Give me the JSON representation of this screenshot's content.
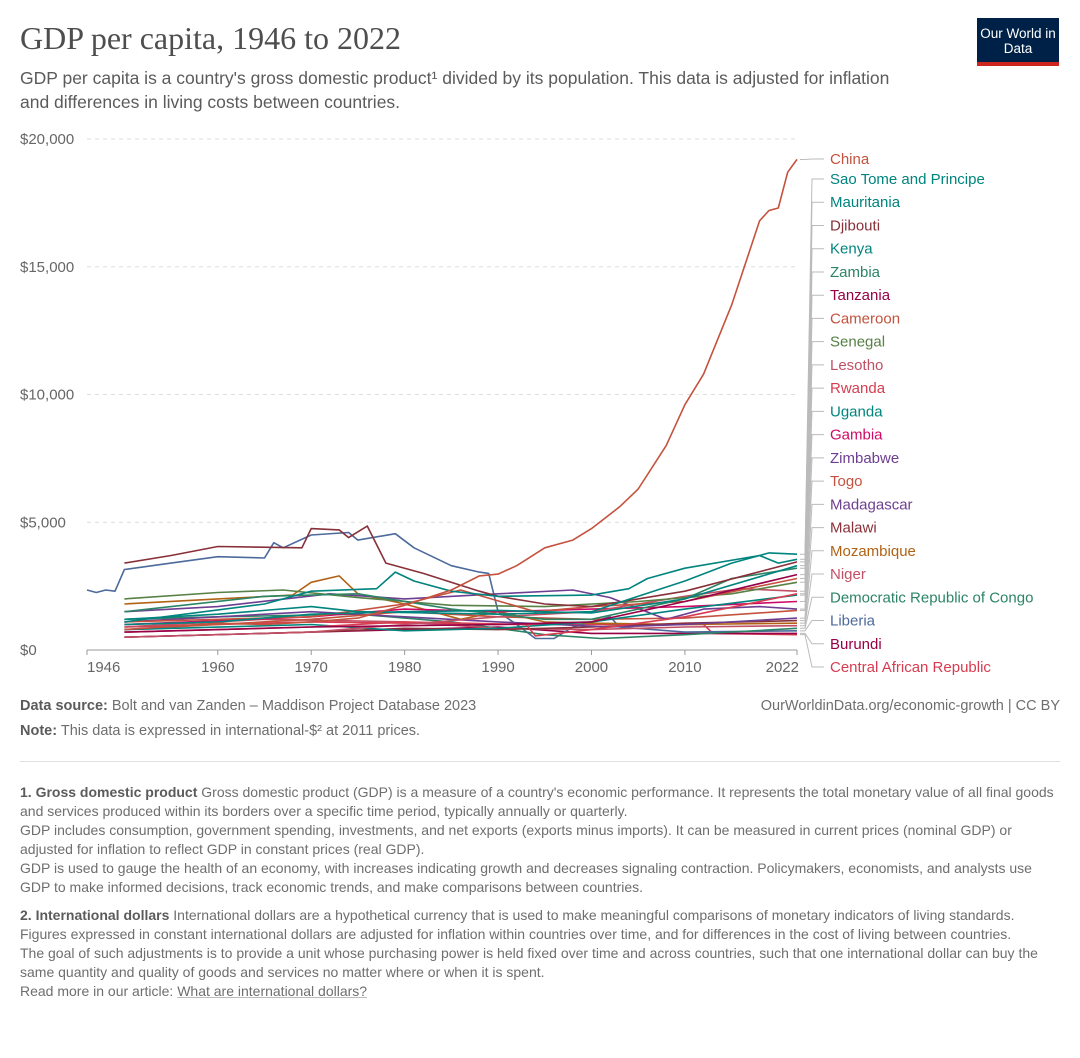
{
  "header": {
    "title": "GDP per capita, 1946 to 2022",
    "subtitle": "GDP per capita is a country's gross domestic product¹ divided by its population. This data is adjusted for inflation and differences in living costs between countries.",
    "logo": "Our World in Data"
  },
  "footer": {
    "source_label": "Data source:",
    "source": "Bolt and van Zanden – Maddison Project Database 2023",
    "url": "OurWorldinData.org/economic-growth | CC BY",
    "note_label": "Note:",
    "note": "This data is expressed in international-$² at 2011 prices."
  },
  "footnotes": {
    "f1_title": "1. Gross domestic product",
    "f1_p1": "Gross domestic product (GDP) is a measure of a country's economic performance. It represents the total monetary value of all final goods and services produced within its borders over a specific time period, typically annually or quarterly.",
    "f1_p2": "GDP includes consumption, government spending, investments, and net exports (exports minus imports). It can be measured in current prices (nominal GDP) or adjusted for inflation to reflect GDP in constant prices (real GDP).",
    "f1_p3": "GDP is used to gauge the health of an economy, with increases indicating growth and decreases signaling contraction. Policymakers, economists, and analysts use GDP to make informed decisions, track economic trends, and make comparisons between countries.",
    "f2_title": "2. International dollars",
    "f2_p1": "International dollars are a hypothetical currency that is used to make meaningful comparisons of monetary indicators of living standards.",
    "f2_p2": "Figures expressed in constant international dollars are adjusted for inflation within countries over time, and for differences in the cost of living between countries.",
    "f2_p3": "The goal of such adjustments is to provide a unit whose purchasing power is held fixed over time and across countries, such that one international dollar can buy the same quantity and quality of goods and services no matter where or when it is spent.",
    "f2_read": "Read more in our article:",
    "f2_link": "What are international dollars?"
  },
  "chart_data": {
    "type": "line",
    "xlim": [
      1946,
      2022
    ],
    "ylim": [
      0,
      20000
    ],
    "x_ticks": [
      1946,
      1960,
      1970,
      1980,
      1990,
      2000,
      2010,
      2022
    ],
    "y_ticks": [
      0,
      5000,
      10000,
      15000,
      20000
    ],
    "y_tick_labels": [
      "$0",
      "$5,000",
      "$10,000",
      "$15,000",
      "$20,000"
    ],
    "grid": "horizontal dashed",
    "legend": "right, line-end labels",
    "series": [
      {
        "name": "China",
        "color": "#c4523e",
        "points": [
          [
            1950,
            800
          ],
          [
            1960,
            1050
          ],
          [
            1965,
            1000
          ],
          [
            1970,
            1100
          ],
          [
            1975,
            1250
          ],
          [
            1978,
            1550
          ],
          [
            1980,
            1750
          ],
          [
            1985,
            2350
          ],
          [
            1988,
            2900
          ],
          [
            1990,
            2970
          ],
          [
            1992,
            3300
          ],
          [
            1995,
            4000
          ],
          [
            1998,
            4300
          ],
          [
            2000,
            4750
          ],
          [
            2003,
            5600
          ],
          [
            2005,
            6300
          ],
          [
            2008,
            8000
          ],
          [
            2010,
            9600
          ],
          [
            2012,
            10800
          ],
          [
            2015,
            13500
          ],
          [
            2018,
            16800
          ],
          [
            2019,
            17200
          ],
          [
            2020,
            17300
          ],
          [
            2021,
            18700
          ],
          [
            2022,
            19200
          ]
        ]
      },
      {
        "name": "Sao Tome and Principe",
        "color": "#00847e",
        "points": [
          [
            1950,
            1200
          ],
          [
            1960,
            1400
          ],
          [
            1970,
            1700
          ],
          [
            1975,
            1500
          ],
          [
            1990,
            1400
          ],
          [
            2000,
            1500
          ],
          [
            2005,
            2100
          ],
          [
            2010,
            2700
          ],
          [
            2015,
            3400
          ],
          [
            2019,
            3800
          ],
          [
            2022,
            3750
          ]
        ]
      },
      {
        "name": "Mauritania",
        "color": "#00847e",
        "points": [
          [
            1950,
            1100
          ],
          [
            1965,
            1800
          ],
          [
            1970,
            2300
          ],
          [
            1977,
            2400
          ],
          [
            1979,
            3050
          ],
          [
            1981,
            2700
          ],
          [
            1985,
            2300
          ],
          [
            1990,
            2100
          ],
          [
            2000,
            2150
          ],
          [
            2004,
            2400
          ],
          [
            2006,
            2800
          ],
          [
            2010,
            3200
          ],
          [
            2018,
            3700
          ],
          [
            2020,
            3400
          ],
          [
            2022,
            3550
          ]
        ]
      },
      {
        "name": "Djibouti",
        "color": "#883039",
        "points": [
          [
            1950,
            3400
          ],
          [
            1955,
            3700
          ],
          [
            1960,
            4050
          ],
          [
            1969,
            4000
          ],
          [
            1970,
            4750
          ],
          [
            1973,
            4700
          ],
          [
            1974,
            4400
          ],
          [
            1976,
            4850
          ],
          [
            1978,
            3400
          ],
          [
            1982,
            3000
          ],
          [
            1988,
            2300
          ],
          [
            1990,
            2100
          ],
          [
            1995,
            1800
          ],
          [
            2000,
            1700
          ],
          [
            2010,
            2300
          ],
          [
            2022,
            3450
          ]
        ]
      },
      {
        "name": "Kenya",
        "color": "#00847e",
        "points": [
          [
            1950,
            1000
          ],
          [
            1960,
            1100
          ],
          [
            1970,
            1400
          ],
          [
            1980,
            1500
          ],
          [
            1990,
            1550
          ],
          [
            2000,
            1450
          ],
          [
            2010,
            2000
          ],
          [
            2022,
            3300
          ]
        ]
      },
      {
        "name": "Zambia",
        "color": "#2c8465",
        "points": [
          [
            1950,
            1500
          ],
          [
            1965,
            2100
          ],
          [
            1975,
            2200
          ],
          [
            1985,
            1600
          ],
          [
            1995,
            1200
          ],
          [
            2000,
            1200
          ],
          [
            2010,
            2000
          ],
          [
            2015,
            2800
          ],
          [
            2022,
            3200
          ]
        ]
      },
      {
        "name": "Tanzania",
        "color": "#970046",
        "points": [
          [
            1950,
            700
          ],
          [
            1970,
            900
          ],
          [
            1990,
            1000
          ],
          [
            2000,
            1100
          ],
          [
            2010,
            1900
          ],
          [
            2022,
            2950
          ]
        ]
      },
      {
        "name": "Cameroon",
        "color": "#c4523e",
        "points": [
          [
            1950,
            1100
          ],
          [
            1970,
            1300
          ],
          [
            1980,
            1800
          ],
          [
            1986,
            2350
          ],
          [
            1994,
            1500
          ],
          [
            2000,
            1700
          ],
          [
            2010,
            1900
          ],
          [
            2022,
            2800
          ]
        ]
      },
      {
        "name": "Senegal",
        "color": "#578145",
        "points": [
          [
            1950,
            2000
          ],
          [
            1960,
            2250
          ],
          [
            1967,
            2350
          ],
          [
            1975,
            2050
          ],
          [
            1985,
            1750
          ],
          [
            1995,
            1700
          ],
          [
            2005,
            1900
          ],
          [
            2015,
            2200
          ],
          [
            2022,
            2650
          ]
        ]
      },
      {
        "name": "Lesotho",
        "color": "#c15065",
        "points": [
          [
            1950,
            500
          ],
          [
            1970,
            700
          ],
          [
            1980,
            1000
          ],
          [
            1990,
            1300
          ],
          [
            2000,
            1500
          ],
          [
            2010,
            2100
          ],
          [
            2016,
            2400
          ],
          [
            2022,
            2300
          ]
        ]
      },
      {
        "name": "Rwanda",
        "color": "#d73c50",
        "points": [
          [
            1950,
            700
          ],
          [
            1970,
            900
          ],
          [
            1980,
            1100
          ],
          [
            1993,
            1000
          ],
          [
            1994,
            550
          ],
          [
            2000,
            800
          ],
          [
            2010,
            1300
          ],
          [
            2022,
            2200
          ]
        ]
      },
      {
        "name": "Uganda",
        "color": "#00847e",
        "points": [
          [
            1950,
            800
          ],
          [
            1970,
            1000
          ],
          [
            1980,
            750
          ],
          [
            1990,
            850
          ],
          [
            2000,
            1100
          ],
          [
            2010,
            1600
          ],
          [
            2022,
            2150
          ]
        ]
      },
      {
        "name": "Gambia",
        "color": "#cf0a66",
        "points": [
          [
            1950,
            1000
          ],
          [
            1970,
            1300
          ],
          [
            1980,
            1600
          ],
          [
            1990,
            1500
          ],
          [
            2000,
            1600
          ],
          [
            2010,
            1700
          ],
          [
            2022,
            1900
          ]
        ]
      },
      {
        "name": "Zimbabwe",
        "color": "#6d3e91",
        "points": [
          [
            1950,
            1500
          ],
          [
            1960,
            1700
          ],
          [
            1972,
            2200
          ],
          [
            1980,
            2000
          ],
          [
            1990,
            2200
          ],
          [
            1998,
            2350
          ],
          [
            2002,
            2050
          ],
          [
            2008,
            1200
          ],
          [
            2012,
            1600
          ],
          [
            2018,
            1700
          ],
          [
            2022,
            1600
          ]
        ]
      },
      {
        "name": "Togo",
        "color": "#c4523e",
        "points": [
          [
            1950,
            800
          ],
          [
            1970,
            1200
          ],
          [
            1980,
            1500
          ],
          [
            1990,
            1300
          ],
          [
            2000,
            1200
          ],
          [
            2010,
            1250
          ],
          [
            2022,
            1550
          ]
        ]
      },
      {
        "name": "Madagascar",
        "color": "#6d3e91",
        "points": [
          [
            1950,
            1100
          ],
          [
            1970,
            1500
          ],
          [
            1980,
            1300
          ],
          [
            1990,
            1100
          ],
          [
            2002,
            900
          ],
          [
            2010,
            1000
          ],
          [
            2022,
            1250
          ]
        ]
      },
      {
        "name": "Malawi",
        "color": "#883039",
        "points": [
          [
            1950,
            500
          ],
          [
            1970,
            700
          ],
          [
            1980,
            850
          ],
          [
            1990,
            800
          ],
          [
            2000,
            900
          ],
          [
            2010,
            1050
          ],
          [
            2022,
            1150
          ]
        ]
      },
      {
        "name": "Mozambique",
        "color": "#b16214",
        "points": [
          [
            1950,
            1800
          ],
          [
            1960,
            2000
          ],
          [
            1968,
            2150
          ],
          [
            1970,
            2650
          ],
          [
            1973,
            2900
          ],
          [
            1975,
            2200
          ],
          [
            1980,
            1800
          ],
          [
            1986,
            1200
          ],
          [
            1990,
            1500
          ],
          [
            1995,
            1100
          ],
          [
            2000,
            1050
          ],
          [
            2010,
            1000
          ],
          [
            2022,
            1050
          ]
        ]
      },
      {
        "name": "Niger",
        "color": "#c15065",
        "points": [
          [
            1950,
            900
          ],
          [
            1965,
            1200
          ],
          [
            1980,
            1100
          ],
          [
            1990,
            850
          ],
          [
            2000,
            800
          ],
          [
            2010,
            900
          ],
          [
            2022,
            950
          ]
        ]
      },
      {
        "name": "Democratic Republic of Congo",
        "color": "#2c8465",
        "points": [
          [
            1950,
            1200
          ],
          [
            1960,
            1300
          ],
          [
            1975,
            1400
          ],
          [
            1985,
            1100
          ],
          [
            1995,
            600
          ],
          [
            2001,
            450
          ],
          [
            2010,
            600
          ],
          [
            2022,
            850
          ]
        ]
      },
      {
        "name": "Liberia",
        "color": "#4c6a9c",
        "points": [
          [
            1946,
            2350
          ],
          [
            1947,
            2250
          ],
          [
            1948,
            2350
          ],
          [
            1949,
            2300
          ],
          [
            1950,
            3150
          ],
          [
            1955,
            3400
          ],
          [
            1960,
            3650
          ],
          [
            1965,
            3600
          ],
          [
            1966,
            4200
          ],
          [
            1967,
            4000
          ],
          [
            1970,
            4500
          ],
          [
            1974,
            4600
          ],
          [
            1975,
            4300
          ],
          [
            1979,
            4550
          ],
          [
            1981,
            4000
          ],
          [
            1985,
            3300
          ],
          [
            1988,
            3050
          ],
          [
            1989,
            3000
          ],
          [
            1990,
            1500
          ],
          [
            1992,
            1000
          ],
          [
            1994,
            450
          ],
          [
            1996,
            450
          ],
          [
            1998,
            900
          ],
          [
            2002,
            1300
          ],
          [
            2003,
            900
          ],
          [
            2010,
            700
          ],
          [
            2022,
            750
          ]
        ]
      },
      {
        "name": "Burundi",
        "color": "#970046",
        "points": [
          [
            1950,
            500
          ],
          [
            1970,
            700
          ],
          [
            1990,
            900
          ],
          [
            2000,
            650
          ],
          [
            2010,
            650
          ],
          [
            2022,
            650
          ]
        ]
      },
      {
        "name": "Central African Republic",
        "color": "#d73c50",
        "points": [
          [
            1950,
            900
          ],
          [
            1970,
            1100
          ],
          [
            1990,
            1000
          ],
          [
            2012,
            1000
          ],
          [
            2013,
            650
          ],
          [
            2022,
            600
          ]
        ]
      }
    ]
  }
}
